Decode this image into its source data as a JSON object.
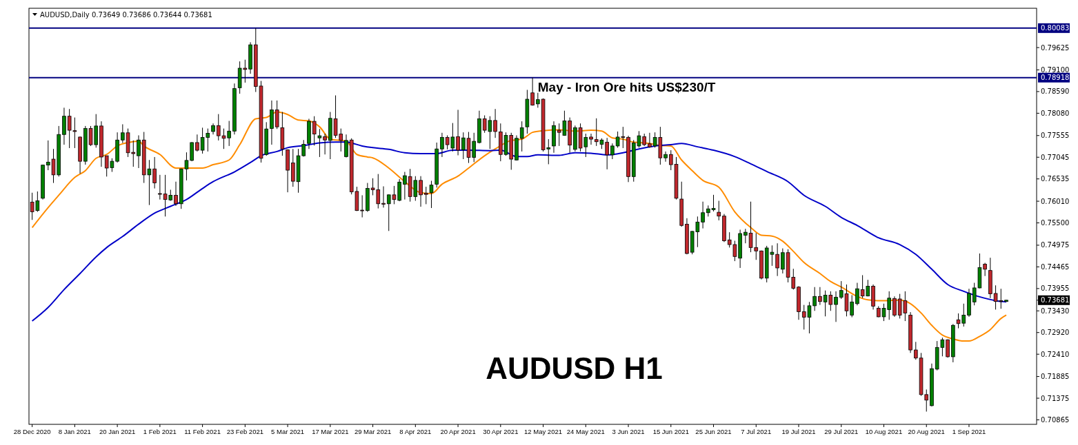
{
  "chart_data": {
    "type": "candlestick",
    "title": "AUDUSD,Daily  0.73649 0.73686 0.73644 0.73681",
    "categories": [
      "28 Dec 2020",
      null,
      null,
      null,
      null,
      null,
      null,
      null,
      "8 Jan 2021",
      null,
      null,
      null,
      null,
      null,
      null,
      null,
      "20 Jan 2021",
      null,
      null,
      null,
      null,
      null,
      null,
      null,
      "1 Feb 2021",
      null,
      null,
      null,
      null,
      null,
      null,
      null,
      "11 Feb 2021",
      null,
      null,
      null,
      null,
      null,
      null,
      null,
      "23 Feb 2021",
      null,
      null,
      null,
      null,
      null,
      null,
      null,
      "5 Mar 2021",
      null,
      null,
      null,
      null,
      null,
      null,
      null,
      "17 Mar 2021",
      null,
      null,
      null,
      null,
      null,
      null,
      null,
      "29 Mar 2021",
      null,
      null,
      null,
      null,
      null,
      null,
      null,
      "8 Apr 2021",
      null,
      null,
      null,
      null,
      null,
      null,
      null,
      "20 Apr 2021",
      null,
      null,
      null,
      null,
      null,
      null,
      null,
      "30 Apr 2021",
      null,
      null,
      null,
      null,
      null,
      null,
      null,
      "12 May 2021",
      null,
      null,
      null,
      null,
      null,
      null,
      null,
      "24 May 2021",
      null,
      null,
      null,
      null,
      null,
      null,
      null,
      "3 Jun 2021",
      null,
      null,
      null,
      null,
      null,
      null,
      null,
      "15 Jun 2021",
      null,
      null,
      null,
      null,
      null,
      null,
      null,
      "25 Jun 2021",
      null,
      null,
      null,
      null,
      null,
      null,
      null,
      "7 Jul 2021",
      null,
      null,
      null,
      null,
      null,
      null,
      null,
      "19 Jul 2021",
      null,
      null,
      null,
      null,
      null,
      null,
      null,
      "29 Jul 2021",
      null,
      null,
      null,
      null,
      null,
      null,
      null,
      "10 Aug 2021",
      null,
      null,
      null,
      null,
      null,
      null,
      null,
      "20 Aug 2021",
      null,
      null,
      null,
      null,
      null,
      null,
      null,
      "1 Sep 2021",
      null,
      null,
      null,
      null,
      null,
      null,
      null
    ],
    "ohlc": [
      [
        0.7599,
        0.7621,
        0.7557,
        0.7576
      ],
      [
        0.7579,
        0.7624,
        0.7576,
        0.7602
      ],
      [
        0.7608,
        0.7687,
        0.7605,
        0.7686
      ],
      [
        0.7686,
        0.7744,
        0.7674,
        0.7693
      ],
      [
        0.77,
        0.7724,
        0.7644,
        0.7663
      ],
      [
        0.7663,
        0.7778,
        0.7659,
        0.7758
      ],
      [
        0.7758,
        0.7821,
        0.7734,
        0.7801
      ],
      [
        0.7801,
        0.7818,
        0.7726,
        0.7768
      ],
      [
        0.7767,
        0.7798,
        0.7726,
        0.7765
      ],
      [
        0.7752,
        0.7753,
        0.7666,
        0.7695
      ],
      [
        0.7695,
        0.7778,
        0.7687,
        0.7772
      ],
      [
        0.7772,
        0.7778,
        0.7731,
        0.7734
      ],
      [
        0.7734,
        0.7806,
        0.7727,
        0.7778
      ],
      [
        0.7778,
        0.7789,
        0.7682,
        0.7705
      ],
      [
        0.7708,
        0.7708,
        0.7659,
        0.7679
      ],
      [
        0.768,
        0.7702,
        0.767,
        0.7695
      ],
      [
        0.7695,
        0.7763,
        0.7692,
        0.7745
      ],
      [
        0.7745,
        0.7782,
        0.7738,
        0.7762
      ],
      [
        0.7762,
        0.7772,
        0.7705,
        0.7715
      ],
      [
        0.7716,
        0.7744,
        0.7682,
        0.7713
      ],
      [
        0.7708,
        0.7756,
        0.7679,
        0.7745
      ],
      [
        0.7745,
        0.7764,
        0.7644,
        0.7663
      ],
      [
        0.7663,
        0.7698,
        0.7592,
        0.7677
      ],
      [
        0.7677,
        0.7705,
        0.7631,
        0.7644
      ],
      [
        0.7619,
        0.7663,
        0.7605,
        0.7618
      ],
      [
        0.7618,
        0.7663,
        0.7565,
        0.7605
      ],
      [
        0.7604,
        0.7628,
        0.7602,
        0.7615
      ],
      [
        0.7615,
        0.7647,
        0.759,
        0.7595
      ],
      [
        0.7595,
        0.7678,
        0.7583,
        0.7677
      ],
      [
        0.7677,
        0.7716,
        0.765,
        0.7697
      ],
      [
        0.7697,
        0.774,
        0.7695,
        0.7739
      ],
      [
        0.7739,
        0.7758,
        0.7718,
        0.7721
      ],
      [
        0.7721,
        0.7774,
        0.7713,
        0.7751
      ],
      [
        0.7751,
        0.7772,
        0.7718,
        0.7761
      ],
      [
        0.7765,
        0.7784,
        0.7758,
        0.7779
      ],
      [
        0.7779,
        0.7806,
        0.7744,
        0.7755
      ],
      [
        0.7755,
        0.7772,
        0.7724,
        0.7749
      ],
      [
        0.775,
        0.779,
        0.7731,
        0.7766
      ],
      [
        0.7766,
        0.7878,
        0.7758,
        0.7866
      ],
      [
        0.7868,
        0.793,
        0.7854,
        0.7914
      ],
      [
        0.7914,
        0.7934,
        0.788,
        0.7911
      ],
      [
        0.7912,
        0.7975,
        0.7901,
        0.7969
      ],
      [
        0.7969,
        0.8008,
        0.7858,
        0.7871
      ],
      [
        0.7872,
        0.7884,
        0.7692,
        0.7702
      ],
      [
        0.7711,
        0.7787,
        0.7708,
        0.7771
      ],
      [
        0.7772,
        0.7838,
        0.7734,
        0.7816
      ],
      [
        0.7816,
        0.7838,
        0.7771,
        0.7776
      ],
      [
        0.7774,
        0.7811,
        0.7708,
        0.7724
      ],
      [
        0.7722,
        0.7723,
        0.7622,
        0.7674
      ],
      [
        0.7691,
        0.7724,
        0.7635,
        0.7648
      ],
      [
        0.7647,
        0.7724,
        0.7621,
        0.7708
      ],
      [
        0.7708,
        0.7745,
        0.7706,
        0.7735
      ],
      [
        0.7737,
        0.7795,
        0.7724,
        0.7789
      ],
      [
        0.7789,
        0.7801,
        0.7732,
        0.7759
      ],
      [
        0.775,
        0.7771,
        0.7705,
        0.7755
      ],
      [
        0.7753,
        0.776,
        0.7711,
        0.7745
      ],
      [
        0.7744,
        0.7811,
        0.77,
        0.7796
      ],
      [
        0.7795,
        0.785,
        0.775,
        0.7756
      ],
      [
        0.7759,
        0.7772,
        0.7718,
        0.7744
      ],
      [
        0.7706,
        0.7758,
        0.7704,
        0.7744
      ],
      [
        0.7745,
        0.7749,
        0.7617,
        0.7623
      ],
      [
        0.7624,
        0.7635,
        0.7578,
        0.7579
      ],
      [
        0.758,
        0.7615,
        0.7563,
        0.7579
      ],
      [
        0.7579,
        0.7644,
        0.7576,
        0.7631
      ],
      [
        0.7632,
        0.7655,
        0.7615,
        0.7628
      ],
      [
        0.7628,
        0.7665,
        0.7584,
        0.7595
      ],
      [
        0.7596,
        0.7636,
        0.7586,
        0.7594
      ],
      [
        0.7595,
        0.7617,
        0.7531,
        0.7616
      ],
      [
        0.7616,
        0.7637,
        0.7594,
        0.7605
      ],
      [
        0.7603,
        0.7653,
        0.7601,
        0.7646
      ],
      [
        0.7641,
        0.767,
        0.7605,
        0.7661
      ],
      [
        0.7659,
        0.7677,
        0.76,
        0.7612
      ],
      [
        0.7612,
        0.766,
        0.7602,
        0.765
      ],
      [
        0.765,
        0.766,
        0.7588,
        0.7616
      ],
      [
        0.762,
        0.7635,
        0.7594,
        0.7617
      ],
      [
        0.7621,
        0.7649,
        0.7585,
        0.7639
      ],
      [
        0.7641,
        0.7739,
        0.7633,
        0.7724
      ],
      [
        0.7724,
        0.7762,
        0.7705,
        0.7751
      ],
      [
        0.7751,
        0.7756,
        0.7723,
        0.7734
      ],
      [
        0.7726,
        0.7785,
        0.7718,
        0.7752
      ],
      [
        0.7753,
        0.7816,
        0.7709,
        0.7721
      ],
      [
        0.7722,
        0.7763,
        0.77,
        0.775
      ],
      [
        0.7749,
        0.7764,
        0.7691,
        0.7704
      ],
      [
        0.7704,
        0.7762,
        0.7693,
        0.7742
      ],
      [
        0.7739,
        0.7814,
        0.7737,
        0.7795
      ],
      [
        0.7795,
        0.7803,
        0.7762,
        0.7768
      ],
      [
        0.7765,
        0.7801,
        0.7724,
        0.7791
      ],
      [
        0.7791,
        0.7818,
        0.775,
        0.7765
      ],
      [
        0.7764,
        0.7784,
        0.7695,
        0.7711
      ],
      [
        0.7711,
        0.7763,
        0.7708,
        0.7756
      ],
      [
        0.7756,
        0.7762,
        0.7675,
        0.77
      ],
      [
        0.7698,
        0.7756,
        0.7697,
        0.7749
      ],
      [
        0.7749,
        0.7789,
        0.7718,
        0.7774
      ],
      [
        0.7776,
        0.7863,
        0.776,
        0.7841
      ],
      [
        0.7856,
        0.7892,
        0.7826,
        0.7827
      ],
      [
        0.783,
        0.7856,
        0.7821,
        0.784
      ],
      [
        0.7841,
        0.7843,
        0.7718,
        0.7722
      ],
      [
        0.7724,
        0.7747,
        0.7688,
        0.7727
      ],
      [
        0.7731,
        0.7789,
        0.7715,
        0.7779
      ],
      [
        0.7768,
        0.7784,
        0.7731,
        0.7763
      ],
      [
        0.7756,
        0.7814,
        0.7755,
        0.779
      ],
      [
        0.779,
        0.7798,
        0.7715,
        0.7733
      ],
      [
        0.7723,
        0.7779,
        0.7718,
        0.7774
      ],
      [
        0.7774,
        0.7784,
        0.7718,
        0.7726
      ],
      [
        0.7729,
        0.776,
        0.7705,
        0.7751
      ],
      [
        0.7752,
        0.776,
        0.7734,
        0.7747
      ],
      [
        0.7746,
        0.7796,
        0.7731,
        0.7741
      ],
      [
        0.7735,
        0.7749,
        0.7724,
        0.7745
      ],
      [
        0.774,
        0.775,
        0.7676,
        0.771
      ],
      [
        0.771,
        0.7737,
        0.77,
        0.7731
      ],
      [
        0.7731,
        0.7765,
        0.7727,
        0.7752
      ],
      [
        0.7753,
        0.7776,
        0.7726,
        0.7751
      ],
      [
        0.7751,
        0.7755,
        0.7646,
        0.7659
      ],
      [
        0.7659,
        0.7745,
        0.7647,
        0.7738
      ],
      [
        0.7731,
        0.7766,
        0.7727,
        0.7755
      ],
      [
        0.7753,
        0.776,
        0.7731,
        0.7734
      ],
      [
        0.7736,
        0.7762,
        0.7727,
        0.7729
      ],
      [
        0.7731,
        0.7763,
        0.7727,
        0.7751
      ],
      [
        0.7751,
        0.7776,
        0.7687,
        0.7703
      ],
      [
        0.7703,
        0.7718,
        0.7694,
        0.7711
      ],
      [
        0.7711,
        0.7721,
        0.7674,
        0.7687
      ],
      [
        0.7688,
        0.7705,
        0.7605,
        0.7608
      ],
      [
        0.7606,
        0.7647,
        0.7541,
        0.7544
      ],
      [
        0.7547,
        0.7561,
        0.7476,
        0.7478
      ],
      [
        0.7481,
        0.7531,
        0.7476,
        0.753
      ],
      [
        0.7529,
        0.7565,
        0.7493,
        0.7552
      ],
      [
        0.7552,
        0.76,
        0.7537,
        0.7574
      ],
      [
        0.7574,
        0.7591,
        0.7565,
        0.7583
      ],
      [
        0.7581,
        0.7616,
        0.7577,
        0.7584
      ],
      [
        0.7575,
        0.7602,
        0.7556,
        0.7566
      ],
      [
        0.7566,
        0.7571,
        0.7505,
        0.7508
      ],
      [
        0.751,
        0.7528,
        0.7492,
        0.7499
      ],
      [
        0.7499,
        0.7508,
        0.746,
        0.7471
      ],
      [
        0.7467,
        0.7534,
        0.7444,
        0.7525
      ],
      [
        0.7521,
        0.7536,
        0.7502,
        0.7528
      ],
      [
        0.7526,
        0.76,
        0.7481,
        0.7492
      ],
      [
        0.7492,
        0.7526,
        0.7463,
        0.7484
      ],
      [
        0.7484,
        0.7485,
        0.7417,
        0.742
      ],
      [
        0.742,
        0.7496,
        0.741,
        0.7491
      ],
      [
        0.7476,
        0.7497,
        0.7449,
        0.7481
      ],
      [
        0.7476,
        0.7502,
        0.7425,
        0.7444
      ],
      [
        0.7441,
        0.749,
        0.7431,
        0.748
      ],
      [
        0.748,
        0.7488,
        0.741,
        0.7422
      ],
      [
        0.7422,
        0.7442,
        0.7393,
        0.7396
      ],
      [
        0.7399,
        0.7401,
        0.7322,
        0.7341
      ],
      [
        0.7341,
        0.7357,
        0.7299,
        0.7328
      ],
      [
        0.7328,
        0.7364,
        0.729,
        0.7355
      ],
      [
        0.7355,
        0.7399,
        0.7343,
        0.7377
      ],
      [
        0.7377,
        0.7399,
        0.7357,
        0.7365
      ],
      [
        0.7364,
        0.7391,
        0.733,
        0.738
      ],
      [
        0.738,
        0.7389,
        0.7343,
        0.7358
      ],
      [
        0.7358,
        0.7389,
        0.7317,
        0.7375
      ],
      [
        0.7375,
        0.7413,
        0.7371,
        0.7391
      ],
      [
        0.7383,
        0.7405,
        0.733,
        0.7343
      ],
      [
        0.7333,
        0.738,
        0.7328,
        0.7364
      ],
      [
        0.736,
        0.7409,
        0.7356,
        0.7395
      ],
      [
        0.7393,
        0.7427,
        0.7373,
        0.7378
      ],
      [
        0.7378,
        0.7416,
        0.7377,
        0.7401
      ],
      [
        0.7401,
        0.7405,
        0.7346,
        0.7354
      ],
      [
        0.7349,
        0.7354,
        0.7328,
        0.7329
      ],
      [
        0.7329,
        0.736,
        0.7319,
        0.7349
      ],
      [
        0.7346,
        0.7389,
        0.7322,
        0.7373
      ],
      [
        0.7372,
        0.7377,
        0.7329,
        0.7333
      ],
      [
        0.7371,
        0.7383,
        0.7325,
        0.7333
      ],
      [
        0.7367,
        0.7389,
        0.7319,
        0.7338
      ],
      [
        0.7333,
        0.734,
        0.7244,
        0.7251
      ],
      [
        0.7251,
        0.727,
        0.7228,
        0.7232
      ],
      [
        0.7232,
        0.7244,
        0.7143,
        0.7146
      ],
      [
        0.7146,
        0.7158,
        0.7106,
        0.7133
      ],
      [
        0.712,
        0.7219,
        0.7118,
        0.7207
      ],
      [
        0.7206,
        0.7272,
        0.7203,
        0.7257
      ],
      [
        0.7257,
        0.728,
        0.7236,
        0.7275
      ],
      [
        0.7275,
        0.7276,
        0.7233,
        0.7235
      ],
      [
        0.7235,
        0.7312,
        0.7222,
        0.7309
      ],
      [
        0.7322,
        0.7337,
        0.7302,
        0.7313
      ],
      [
        0.7314,
        0.736,
        0.7306,
        0.7333
      ],
      [
        0.7333,
        0.7395,
        0.7329,
        0.7384
      ],
      [
        0.7364,
        0.7409,
        0.7356,
        0.7397
      ],
      [
        0.7397,
        0.7478,
        0.7396,
        0.7445
      ],
      [
        0.7453,
        0.7456,
        0.7425,
        0.7441
      ],
      [
        0.7438,
        0.7468,
        0.7373,
        0.7383
      ],
      [
        0.7384,
        0.7403,
        0.7346,
        0.7365
      ],
      [
        0.7367,
        0.7395,
        0.7348,
        0.7365
      ],
      [
        0.73649,
        0.73686,
        0.73644,
        0.73681
      ]
    ],
    "series": [
      {
        "type": "line",
        "color": "#ff8c00",
        "values": [
          0.7539,
          null,
          null,
          0.7586,
          null,
          0.7615,
          null,
          null,
          0.7657,
          null,
          0.7673,
          null,
          0.7702,
          null,
          0.7711,
          null,
          0.7731,
          null,
          0.7739,
          null,
          0.7742,
          0.7731,
          null,
          null,
          0.7711,
          null,
          null,
          0.7679,
          null,
          null,
          0.7679,
          null,
          0.7679,
          null,
          0.7687,
          null,
          null,
          0.7698,
          null,
          0.7734,
          null,
          null,
          0.7795,
          null,
          0.7798,
          null,
          0.7811,
          null,
          0.7805,
          null,
          0.7792,
          null,
          0.779,
          null,
          0.7776,
          null,
          0.7747,
          null,
          null,
          0.7742,
          null,
          0.7711,
          null,
          0.7705,
          0.7703,
          null,
          null,
          0.7679,
          null,
          null,
          0.7647,
          null,
          null,
          0.7621,
          null,
          0.7619,
          null,
          0.7641,
          null,
          null,
          0.766,
          null,
          0.7679,
          null,
          null,
          0.7708,
          null,
          0.7724,
          null,
          null,
          0.7744,
          null,
          0.7747,
          null,
          0.7763,
          null,
          0.7767,
          null,
          null,
          0.7769,
          null,
          null,
          0.7766,
          null,
          null,
          0.7768,
          null,
          0.7766,
          null,
          0.775,
          null,
          0.7747,
          null,
          0.774,
          null,
          null,
          0.7737,
          null,
          0.7732,
          null,
          0.7731,
          null,
          0.7698,
          null,
          0.7673,
          null,
          0.765,
          null,
          null,
          0.7634,
          null,
          null,
          0.7576,
          null,
          null,
          0.7539,
          null,
          0.7521,
          null,
          0.7519,
          null,
          0.7507,
          null,
          0.7483,
          null,
          0.7457,
          null,
          null,
          0.7431,
          null,
          0.7412,
          null,
          0.7399,
          null,
          null,
          0.7377,
          null,
          0.7369,
          null,
          0.7367,
          null,
          null,
          null,
          0.7368,
          null,
          0.736,
          null,
          0.7338,
          null,
          0.7309,
          null,
          0.7286,
          null,
          0.7277,
          null,
          0.7272,
          0.7272,
          null,
          0.7283,
          null,
          0.7299,
          null,
          0.7325,
          0.7333
        ]
      },
      {
        "type": "line",
        "color": "#0000c8",
        "values": [
          0.7319,
          null,
          null,
          0.7351,
          null,
          null,
          0.7393,
          null,
          null,
          0.7431,
          null,
          null,
          0.747,
          null,
          0.7492,
          null,
          null,
          0.7518,
          null,
          null,
          0.7547,
          null,
          null,
          0.7573,
          null,
          null,
          0.7589,
          null,
          null,
          0.7605,
          null,
          null,
          0.7631,
          null,
          0.7647,
          null,
          null,
          null,
          0.767,
          null,
          null,
          0.7692,
          null,
          0.7708,
          null,
          null,
          0.7718,
          null,
          0.7727,
          null,
          null,
          0.7732,
          null,
          null,
          0.7738,
          null,
          null,
          0.774,
          null,
          0.774,
          null,
          null,
          0.7731,
          null,
          0.7727,
          null,
          null,
          0.7723,
          null,
          null,
          0.7715,
          null,
          null,
          0.7713,
          null,
          null,
          0.7713,
          null,
          null,
          0.7721,
          null,
          null,
          0.7721,
          null,
          null,
          null,
          0.772,
          null,
          0.7721,
          null,
          null,
          0.7706,
          null,
          0.7706,
          null,
          0.771,
          null,
          null,
          null,
          0.7709,
          null,
          null,
          0.7715,
          null,
          null,
          0.7714,
          null,
          null,
          0.771,
          null,
          null,
          0.7715,
          null,
          null,
          0.7724,
          null,
          null,
          0.7731,
          null,
          null,
          0.7734,
          null,
          0.7737,
          null,
          null,
          0.7729,
          null,
          null,
          0.7721,
          null,
          null,
          null,
          0.7706,
          null,
          null,
          0.7689,
          null,
          null,
          0.7671,
          null,
          null,
          null,
          0.7647,
          null,
          null,
          0.7615,
          null,
          null,
          null,
          0.7589,
          null,
          null,
          0.7563,
          null,
          null,
          0.7544,
          null,
          null,
          null,
          0.7515,
          null,
          null,
          null,
          0.7499,
          null,
          null,
          0.7476,
          null,
          null,
          0.7441,
          null,
          null,
          0.7405,
          null,
          null,
          0.7389,
          null,
          null,
          0.7376,
          null,
          null,
          0.7367,
          null,
          0.7364
        ]
      }
    ],
    "ylim": [
      0.7076,
      0.8055
    ],
    "yticks": [
      {
        "value": 0.79625,
        "label": "0.79625"
      },
      {
        "value": 0.791,
        "label": "0.79100"
      },
      {
        "value": 0.7859,
        "label": "0.78590"
      },
      {
        "value": 0.7808,
        "label": "0.78080"
      },
      {
        "value": 0.77555,
        "label": "0.77555"
      },
      {
        "value": 0.77045,
        "label": "0.77045"
      },
      {
        "value": 0.76535,
        "label": "0.76535"
      },
      {
        "value": 0.7601,
        "label": "0.76010"
      },
      {
        "value": 0.755,
        "label": "0.75500"
      },
      {
        "value": 0.74975,
        "label": "0.74975"
      },
      {
        "value": 0.74465,
        "label": "0.74465"
      },
      {
        "value": 0.73955,
        "label": "0.73955"
      },
      {
        "value": 0.7343,
        "label": "0.73430"
      },
      {
        "value": 0.7292,
        "label": "0.72920"
      },
      {
        "value": 0.7241,
        "label": "0.72410"
      },
      {
        "value": 0.71885,
        "label": "0.71885"
      },
      {
        "value": 0.71375,
        "label": "0.71375"
      },
      {
        "value": 0.70865,
        "label": "0.70865"
      },
      {
        "value": 0.73681,
        "label": "0.73681"
      }
    ],
    "ref_lines": [
      {
        "axis": "y",
        "value": 0.80083,
        "label": "0.80083",
        "color": "#000080"
      },
      {
        "axis": "y",
        "value": 0.78918,
        "label": "0.78918",
        "color": "#000080"
      }
    ],
    "annotations": [
      "May - Iron Ore hits US$230/T",
      "AUDUSD H1"
    ]
  }
}
